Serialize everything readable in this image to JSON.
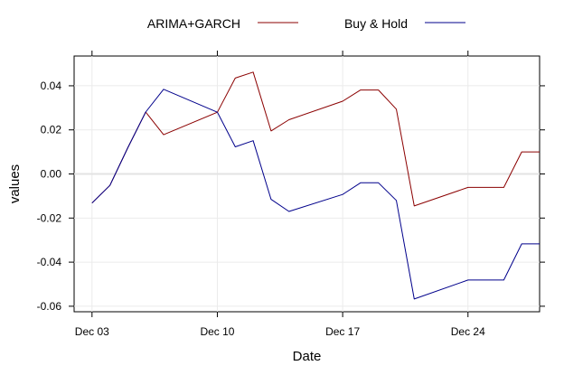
{
  "chart_data": {
    "type": "line",
    "title": "",
    "xlabel": "Date",
    "ylabel": "values",
    "xlim": [
      2,
      28
    ],
    "ylim": [
      -0.0625,
      0.0535
    ],
    "grid": true,
    "legend_position": "top",
    "x_ticks": [
      {
        "day": 3,
        "label": "Dec 03"
      },
      {
        "day": 10,
        "label": "Dec 10"
      },
      {
        "day": 17,
        "label": "Dec 17"
      },
      {
        "day": 24,
        "label": "Dec 24"
      }
    ],
    "y_ticks": [
      {
        "value": 0.04,
        "label": "0.04"
      },
      {
        "value": 0.02,
        "label": "0.02"
      },
      {
        "value": 0.0,
        "label": "0.00"
      },
      {
        "value": -0.02,
        "label": "-0.02"
      },
      {
        "value": -0.04,
        "label": "-0.04"
      },
      {
        "value": -0.06,
        "label": "-0.06"
      }
    ],
    "x": [
      3,
      4,
      5,
      6,
      7,
      10,
      11,
      12,
      13,
      14,
      17,
      18,
      19,
      20,
      21,
      24,
      25,
      26,
      27,
      28
    ],
    "series": [
      {
        "name": "ARIMA+GARCH",
        "color": "#8b0000",
        "values": [
          -0.0132,
          -0.0052,
          0.0119,
          0.0281,
          0.0178,
          0.028,
          0.0435,
          0.0462,
          0.0195,
          0.0246,
          0.033,
          0.0381,
          0.0381,
          0.0294,
          -0.0145,
          -0.0061,
          -0.0061,
          -0.0061,
          0.01,
          0.01
        ]
      },
      {
        "name": "Buy & Hold",
        "color": "#00008b",
        "values": [
          -0.0132,
          -0.0052,
          0.0119,
          0.0281,
          0.0384,
          0.028,
          0.0123,
          0.0151,
          -0.0115,
          -0.017,
          -0.0093,
          -0.004,
          -0.004,
          -0.012,
          -0.0567,
          -0.0481,
          -0.0481,
          -0.0481,
          -0.0317,
          -0.0317
        ]
      }
    ]
  }
}
